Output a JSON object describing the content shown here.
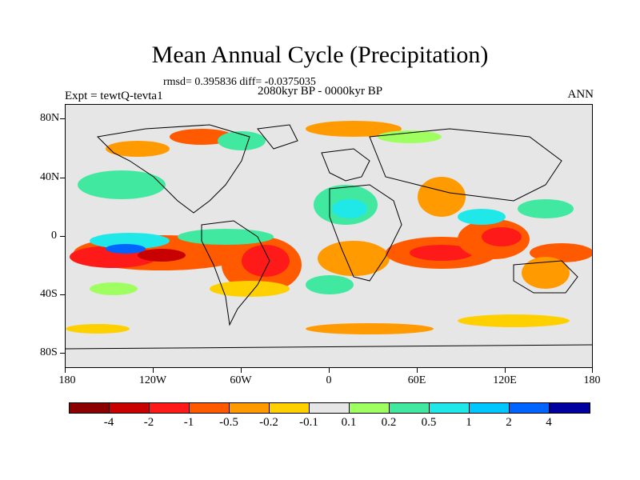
{
  "title": "Mean Annual Cycle (Precipitation)",
  "stats": "rmsd= 0.395836 diff= -0.0375035",
  "subtitle": "2080kyr BP - 0000kyr BP",
  "experiment": "Expt = tewtQ-tevta1",
  "season": "ANN",
  "axes": {
    "lat_labels": [
      "80N",
      "40N",
      "0",
      "40S",
      "80S"
    ],
    "lon_labels": [
      "180",
      "120W",
      "60W",
      "0",
      "60E",
      "120E",
      "180"
    ]
  },
  "colorbar": {
    "colors": [
      "#8b0000",
      "#c80000",
      "#ff1a1a",
      "#ff5a00",
      "#ff9a00",
      "#ffd000",
      "#e6e6e6",
      "#a0ff60",
      "#40e8a0",
      "#20e8e8",
      "#00c8ff",
      "#0064ff",
      "#0000a0"
    ],
    "labels": [
      "-4",
      "-2",
      "-1",
      "-0.5",
      "-0.2",
      "-0.1",
      "0.1",
      "0.2",
      "0.5",
      "1",
      "2",
      "4"
    ]
  }
}
